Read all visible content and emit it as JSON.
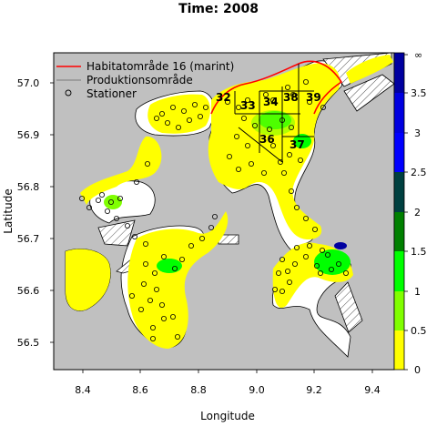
{
  "title": "Time: 2008",
  "axes": {
    "xlabel": "Longitude",
    "ylabel": "Latitude",
    "xticks": [
      "8.4",
      "8.6",
      "8.8",
      "9.0",
      "9.2",
      "9.4"
    ],
    "yticks": [
      "57.0",
      "56.9",
      "56.8",
      "56.7",
      "56.6",
      "56.5"
    ],
    "xlim": [
      8.3,
      9.48
    ],
    "ylim": [
      56.44,
      57.07
    ]
  },
  "legend": {
    "placement": "top-left",
    "items": [
      {
        "label": "Habitatområde 16 (marint)",
        "symbol": "red-line",
        "color": "#ff0000"
      },
      {
        "label": "Produktionsområde",
        "symbol": "gray-line",
        "color": "#888888"
      },
      {
        "label": "Stationer",
        "symbol": "circle",
        "color": "#000000"
      }
    ]
  },
  "colorbar": {
    "ticks": [
      "0",
      "0.5",
      "1",
      "1.5",
      "2",
      "2.5",
      "3",
      "3.5",
      "∞"
    ],
    "bins": [
      {
        "range": "0-0.5",
        "color": "#ffff00"
      },
      {
        "range": "0.5-1",
        "color": "#80ff00"
      },
      {
        "range": "1-1.5",
        "color": "#00ff00"
      },
      {
        "range": "1.5-2",
        "color": "#008000"
      },
      {
        "range": "2-2.5",
        "color": "#004040"
      },
      {
        "range": "2.5-3",
        "color": "#0000ff"
      },
      {
        "range": "3-3.5",
        "color": "#0000e0"
      },
      {
        "range": ">3.5",
        "color": "#0000a0"
      }
    ]
  },
  "area_labels": [
    "32",
    "33",
    "34",
    "38",
    "39",
    "36",
    "37"
  ],
  "colors": {
    "land": "#c0c0c0",
    "water_low": "#ffff00",
    "habitat_border": "#ff0000",
    "production_border": "#000000"
  }
}
